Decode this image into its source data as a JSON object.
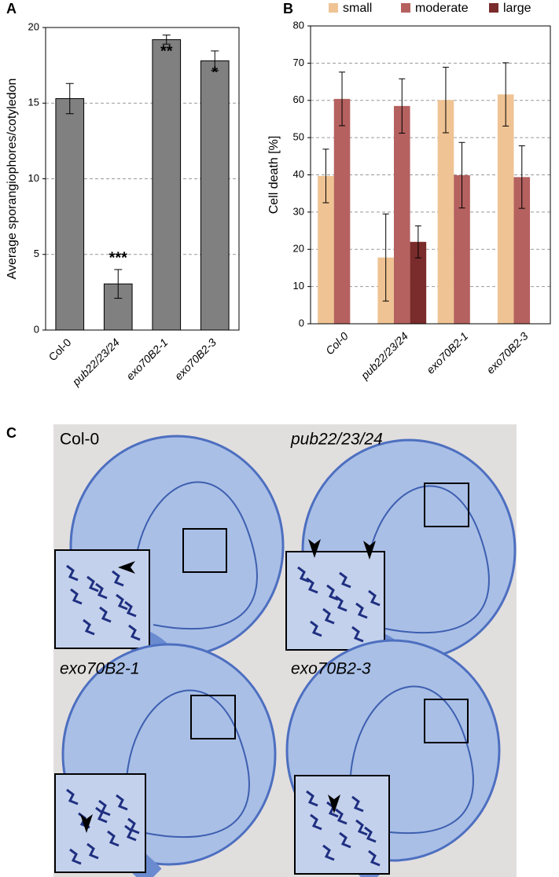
{
  "chart_data": [
    {
      "type": "bar",
      "panel_label": "A",
      "ylabel": "Average sporangiophores/cotyledon",
      "categories": [
        "Col-0",
        "pub22/23/24",
        "exo70B2-1",
        "exo70B2-3"
      ],
      "values": [
        15.3,
        3.05,
        19.2,
        17.8
      ],
      "errors": [
        1.0,
        0.95,
        0.3,
        0.65
      ],
      "annotations": [
        null,
        "***",
        "**",
        "*"
      ],
      "color": "#808080",
      "ylim": [
        0,
        20
      ],
      "yticks": [
        0,
        5,
        10,
        15,
        20
      ],
      "grid": true
    },
    {
      "type": "grouped_bar",
      "panel_label": "B",
      "ylabel": "Cell death [%]",
      "categories": [
        "Col-0",
        "pub22/23/24",
        "exo70B2-1",
        "exo70B2-3"
      ],
      "series": [
        {
          "name": "small",
          "color": "#efc393",
          "values": [
            39.7,
            17.8,
            60.1,
            61.6
          ],
          "errors": [
            7.2,
            11.7,
            8.8,
            8.5
          ]
        },
        {
          "name": "moderate",
          "color": "#b5615f",
          "values": [
            60.4,
            58.5,
            39.9,
            39.4
          ],
          "errors": [
            7.2,
            7.3,
            8.8,
            8.4
          ]
        },
        {
          "name": "large",
          "color": "#7a2b2b",
          "values": [
            0,
            22,
            0,
            0
          ],
          "errors": [
            null,
            4.3,
            null,
            null
          ]
        }
      ],
      "legend": "top",
      "ylim": [
        0,
        80
      ],
      "yticks": [
        0,
        10,
        20,
        30,
        40,
        50,
        60,
        70,
        80
      ],
      "grid": true
    }
  ],
  "images": {
    "panel_label": "C",
    "panels": [
      {
        "label": "Col-0"
      },
      {
        "label": "pub22/23/24"
      },
      {
        "label": "exo70B2-1"
      },
      {
        "label": "exo70B2-3"
      }
    ]
  }
}
